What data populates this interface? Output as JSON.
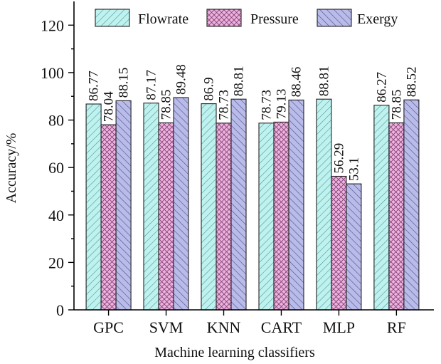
{
  "chart_data": {
    "type": "bar",
    "title": "",
    "xlabel": "Machine learning classifiers",
    "ylabel": "Accuracy/%",
    "ylim": [
      0,
      130
    ],
    "yticks": [
      0,
      20,
      40,
      60,
      80,
      100,
      120
    ],
    "grid": false,
    "legend_position": "top",
    "categories": [
      "GPC",
      "SVM",
      "KNN",
      "CART",
      "MLP",
      "RF"
    ],
    "series": [
      {
        "name": "Flowrate",
        "fill": "#bff2ef",
        "hatch": "#4a9a9a",
        "pattern": "hatch-flow",
        "values": [
          86.77,
          87.17,
          86.9,
          78.73,
          88.81,
          86.27
        ],
        "labels": [
          "86.77",
          "87.17",
          "86.9",
          "78.73",
          "88.81",
          "86.27"
        ]
      },
      {
        "name": "Pressure",
        "fill": "#eab4dc",
        "hatch": "#8a3f7a",
        "pattern": "hatch-press",
        "values": [
          78.04,
          78.85,
          78.73,
          79.13,
          56.29,
          78.85
        ],
        "labels": [
          "78.04",
          "78.85",
          "78.73",
          "79.13",
          "56.29",
          "78.85"
        ]
      },
      {
        "name": "Exergy",
        "fill": "#b9bbe8",
        "hatch": "#4c4f8e",
        "pattern": "hatch-exergy",
        "values": [
          88.15,
          89.48,
          88.81,
          88.46,
          53.1,
          88.52
        ],
        "labels": [
          "88.15",
          "89.48",
          "88.81",
          "88.46",
          "53.1",
          "88.52"
        ]
      }
    ]
  }
}
